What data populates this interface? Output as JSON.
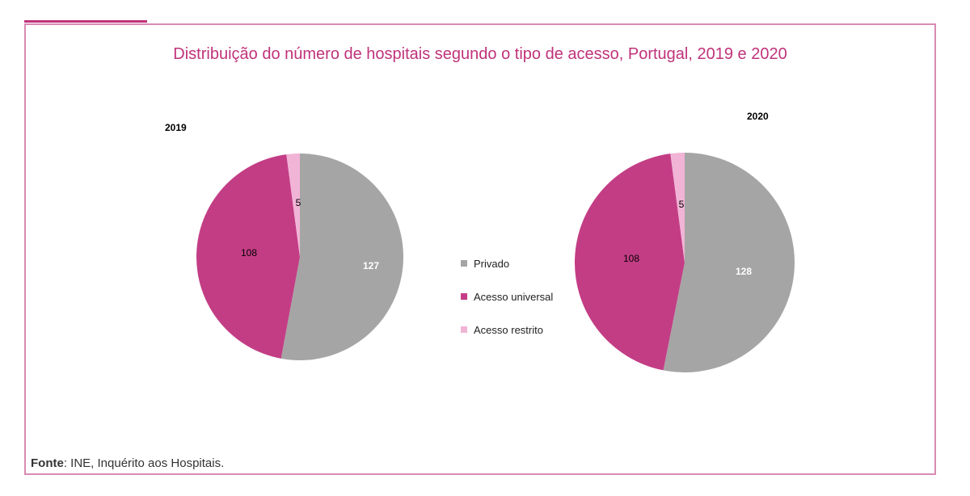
{
  "title": "Distribuição do número de hospitais segundo o tipo de acesso, Portugal, 2019 e 2020",
  "source": {
    "label": "Fonte",
    "text": ": INE, Inquérito aos Hospitais."
  },
  "colors": {
    "accent": "#c0327a",
    "frame": "#d98ab4",
    "privado": "#a6a5a5",
    "acesso_universal": "#c33d85",
    "acesso_restrito": "#f1b4d6"
  },
  "legend": [
    {
      "label": "Privado",
      "color": "#a6a5a5"
    },
    {
      "label": "Acesso universal",
      "color": "#c33d85"
    },
    {
      "label": "Acesso restrito",
      "color": "#f1b4d6"
    }
  ],
  "chart_data": [
    {
      "type": "pie",
      "title": "2019",
      "categories": [
        "Privado",
        "Acesso universal",
        "Acesso restrito"
      ],
      "values": [
        127,
        108,
        5
      ],
      "labels": [
        "127",
        "108",
        "5"
      ],
      "colors": [
        "#a6a5a5",
        "#c33d85",
        "#f1b4d6"
      ],
      "legend": "center"
    },
    {
      "type": "pie",
      "title": "2020",
      "categories": [
        "Privado",
        "Acesso universal",
        "Acesso restrito"
      ],
      "values": [
        128,
        108,
        5
      ],
      "labels": [
        "128",
        "108",
        "5"
      ],
      "colors": [
        "#a6a5a5",
        "#c33d85",
        "#f1b4d6"
      ],
      "legend": "center"
    }
  ]
}
